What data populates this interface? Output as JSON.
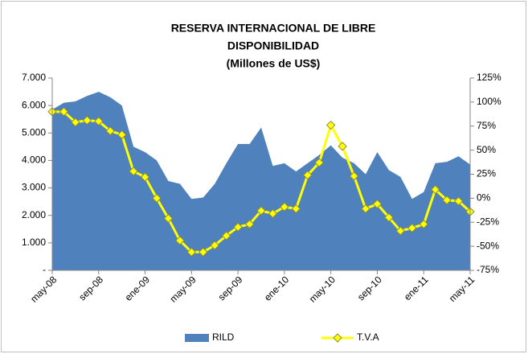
{
  "chart_data": {
    "type": "area_line",
    "title": [
      "RESERVA INTERNACIONAL DE LIBRE",
      "DISPONIBILIDAD"
    ],
    "subtitle": "(Millones de US$)",
    "categories": [
      "may-08",
      null,
      null,
      null,
      "sep-08",
      null,
      null,
      null,
      "ene-09",
      null,
      null,
      null,
      "may-09",
      null,
      null,
      null,
      "sep-09",
      null,
      null,
      null,
      "ene-10",
      null,
      null,
      null,
      "may-10",
      null,
      null,
      null,
      "sep-10",
      null,
      null,
      null,
      "ene-11",
      null,
      null,
      null,
      "may-11"
    ],
    "series": [
      {
        "name": "RILD",
        "color": "#4f81bd",
        "axis": "y",
        "values": [
          5850,
          6100,
          6150,
          6350,
          6500,
          6300,
          6000,
          4500,
          4300,
          4000,
          3250,
          3150,
          2600,
          2650,
          3150,
          3900,
          4600,
          4600,
          5200,
          3800,
          3900,
          3600,
          3900,
          4200,
          4550,
          4100,
          3900,
          3500,
          4300,
          3650,
          3400,
          2600,
          2850,
          3900,
          3950,
          4150,
          3850
        ]
      },
      {
        "name": "T.V.A",
        "color": "#ffff00",
        "axis": "y2",
        "values": [
          90,
          90,
          79,
          81,
          80,
          70,
          66,
          28,
          22,
          0,
          -21,
          -44,
          -56,
          -56,
          -49,
          -39,
          -30,
          -27,
          -13,
          -16,
          -9,
          -11,
          24,
          37,
          76,
          54,
          23,
          -11,
          -6,
          -20,
          -34,
          -31,
          -27,
          9,
          -2,
          -3,
          -14
        ]
      }
    ],
    "ylim": [
      0,
      7000
    ],
    "yticks": [
      {
        "value": 0,
        "label": "-"
      },
      {
        "value": 1000,
        "label": "1.000"
      },
      {
        "value": 2000,
        "label": "2.000"
      },
      {
        "value": 3000,
        "label": "3.000"
      },
      {
        "value": 4000,
        "label": "4.000"
      },
      {
        "value": 5000,
        "label": "5.000"
      },
      {
        "value": 6000,
        "label": "6.000"
      },
      {
        "value": 7000,
        "label": "7.000"
      }
    ],
    "y2lim": [
      -75,
      125
    ],
    "y2ticks": [
      {
        "value": -75,
        "label": "-75%"
      },
      {
        "value": -50,
        "label": "-50%"
      },
      {
        "value": -25,
        "label": "-25%"
      },
      {
        "value": 0,
        "label": "0%"
      },
      {
        "value": 25,
        "label": "25%"
      },
      {
        "value": 50,
        "label": "50%"
      },
      {
        "value": 75,
        "label": "75%"
      },
      {
        "value": 100,
        "label": "100%"
      },
      {
        "value": 125,
        "label": "125%"
      }
    ],
    "legend": "bottom"
  }
}
